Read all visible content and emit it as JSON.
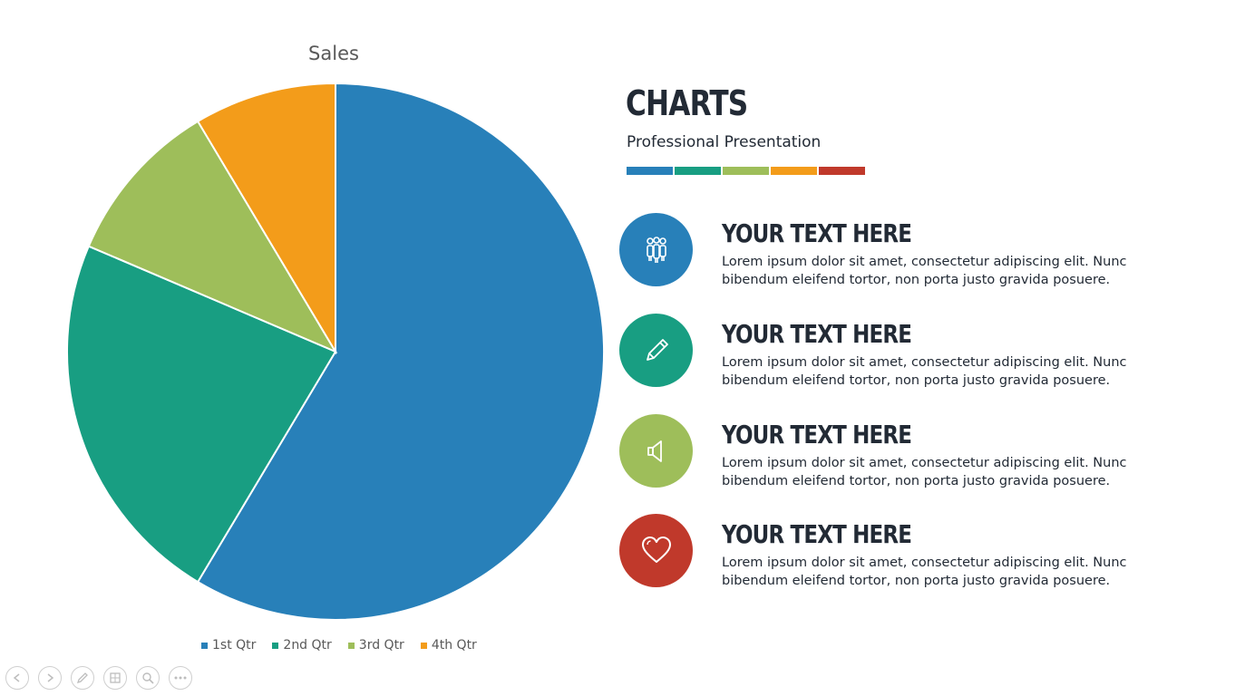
{
  "chart_data": {
    "type": "pie",
    "title": "Sales",
    "categories": [
      "1st Qtr",
      "2nd Qtr",
      "3rd Qtr",
      "4th Qtr"
    ],
    "values": [
      8.2,
      3.2,
      1.4,
      1.2
    ],
    "colors": [
      "#2880b9",
      "#189e82",
      "#9ebe5a",
      "#f39c1a"
    ],
    "legend_position": "bottom"
  },
  "header": {
    "title": "CHARTS",
    "subtitle": "Professional Presentation",
    "bar_colors": [
      "#2880b9",
      "#189e82",
      "#9ebe5a",
      "#f39c1a",
      "#c0392b"
    ]
  },
  "items": [
    {
      "title": "YOUR TEXT HERE",
      "text": "Lorem ipsum dolor sit amet, consectetur adipiscing elit. Nunc bibendum eleifend tortor, non porta justo gravida posuere.",
      "icon": "people-icon",
      "color": "#2880b9"
    },
    {
      "title": "YOUR TEXT HERE",
      "text": "Lorem ipsum dolor sit amet, consectetur adipiscing elit. Nunc bibendum eleifend tortor, non porta justo gravida posuere.",
      "icon": "pencil-icon",
      "color": "#189e82"
    },
    {
      "title": "YOUR TEXT HERE",
      "text": "Lorem ipsum dolor sit amet, consectetur adipiscing elit. Nunc bibendum eleifend tortor, non porta justo gravida posuere.",
      "icon": "megaphone-icon",
      "color": "#9ebe5a"
    },
    {
      "title": "YOUR TEXT HERE",
      "text": "Lorem ipsum dolor sit amet, consectetur adipiscing elit. Nunc bibendum eleifend tortor, non porta justo gravida posuere.",
      "icon": "heart-icon",
      "color": "#c0392b"
    }
  ],
  "nav_icons": [
    "previous-icon",
    "next-icon",
    "pen-icon",
    "slides-icon",
    "zoom-icon",
    "more-icon"
  ]
}
